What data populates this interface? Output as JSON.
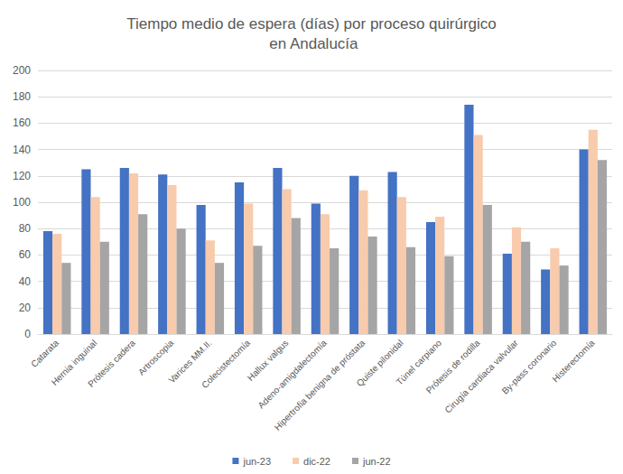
{
  "chart_data": {
    "type": "bar",
    "title": "Tiempo medio de espera (días) por proceso quirúrgico en Andalucía",
    "categories": [
      "Catarata",
      "Hernia inguinal",
      "Prótesis cadera",
      "Artroscopia",
      "Varices MM.II.",
      "Colecistectomía",
      "Hallux valgus",
      "Adeno-amigdalectomía",
      "Hipertrofia benigna de próstata",
      "Quiste pilonidal",
      "Túnel carpiano",
      "Prótesis de rodilla",
      "Cirugía cardiaca valvular",
      "By-pass coronario",
      "Histerectomía"
    ],
    "series": [
      {
        "name": "jun-23",
        "color": "#4472c4",
        "values": [
          78,
          125,
          126,
          121,
          98,
          115,
          126,
          99,
          120,
          123,
          85,
          174,
          61,
          49,
          140
        ]
      },
      {
        "name": "dic-22",
        "color": "#f8cbad",
        "values": [
          76,
          104,
          122,
          113,
          71,
          99,
          110,
          91,
          109,
          104,
          89,
          151,
          81,
          65,
          155
        ]
      },
      {
        "name": "jun-22",
        "color": "#a5a5a5",
        "values": [
          54,
          70,
          91,
          80,
          54,
          67,
          88,
          65,
          74,
          66,
          59,
          98,
          70,
          52,
          132
        ]
      }
    ],
    "ylim": [
      0,
      200
    ],
    "yticks": [
      0,
      20,
      40,
      60,
      80,
      100,
      120,
      140,
      160,
      180,
      200
    ],
    "grid": true,
    "legend": "bottom"
  }
}
